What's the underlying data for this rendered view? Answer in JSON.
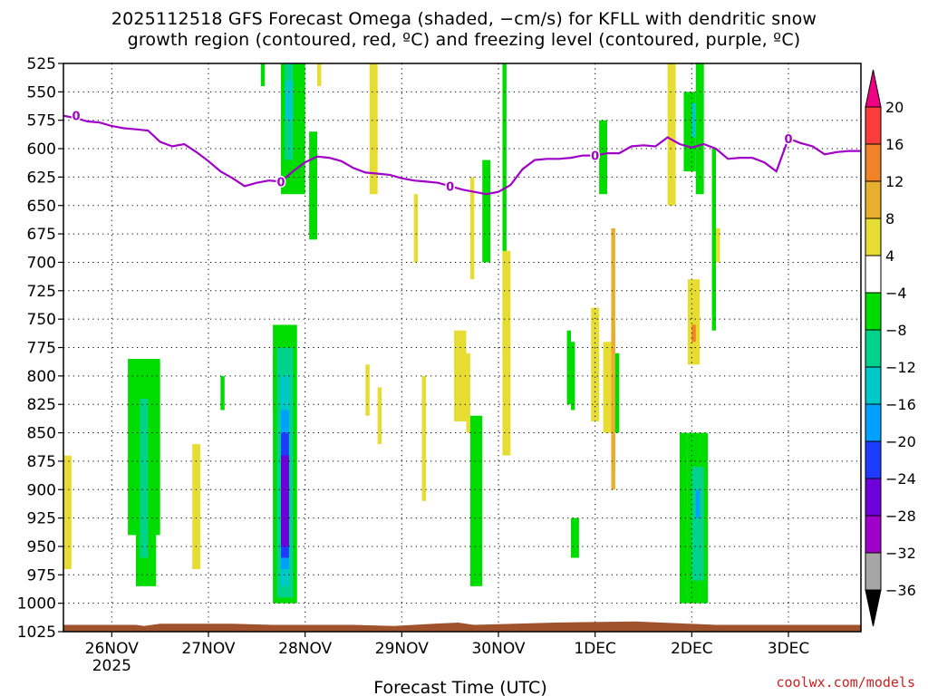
{
  "title_line1": "2025112518 GFS Forecast Omega (shaded, −cm/s) for KFLL with dendritic snow",
  "title_line2": "growth region (contoured, red, ºC) and freezing level (contoured, purple, ºC)",
  "credit": "coolwx.com/models",
  "chart_data": {
    "type": "heatmap",
    "title": "2025112518 GFS Forecast Omega (shaded, −cm/s) for KFLL with dendritic snow growth region (contoured, red, ºC) and freezing level (contoured, purple, ºC)",
    "xlabel": "Forecast Time (UTC)",
    "ylabel": "",
    "x_ticks": [
      "26NOV",
      "27NOV",
      "28NOV",
      "29NOV",
      "30NOV",
      "1DEC",
      "2DEC",
      "3DEC"
    ],
    "x_tick_sublabel": "2025",
    "x_range_hours": [
      -12,
      186
    ],
    "y_ticks": [
      525,
      550,
      575,
      600,
      625,
      650,
      675,
      700,
      725,
      750,
      775,
      800,
      825,
      850,
      875,
      900,
      925,
      950,
      975,
      1000,
      1025
    ],
    "y_range_hPa": [
      525,
      1025
    ],
    "grid": true,
    "colorbar": {
      "levels": [
        -36,
        -32,
        -28,
        -24,
        -20,
        -16,
        -12,
        -8,
        -4,
        4,
        8,
        12,
        16,
        20
      ],
      "colors": [
        "#000000",
        "#a6a6a6",
        "#a000c8",
        "#6e00dc",
        "#1e3cff",
        "#00a0ff",
        "#00c8c8",
        "#00d28c",
        "#00dc00",
        "#ffffff",
        "#e6dc32",
        "#e6af2d",
        "#f08228",
        "#fa3c3c",
        "#f00082"
      ]
    },
    "freezing_level": {
      "label": "0",
      "color": "#a000c8",
      "hours": [
        -12,
        -9,
        -6,
        -3,
        0,
        3,
        6,
        9,
        12,
        15,
        18,
        21,
        24,
        27,
        30,
        33,
        36,
        39,
        42,
        45,
        48,
        51,
        54,
        57,
        60,
        63,
        66,
        69,
        72,
        75,
        78,
        81,
        84,
        87,
        90,
        93,
        96,
        99,
        102,
        105,
        108,
        111,
        114,
        117,
        120,
        123,
        126,
        129,
        132,
        135,
        138,
        141,
        144,
        147,
        150,
        153,
        156,
        159,
        162,
        165,
        168,
        171,
        174,
        177,
        180,
        183,
        186
      ],
      "pressure_hPa": [
        571,
        573,
        576,
        577,
        580,
        582,
        583,
        584,
        594,
        598,
        596,
        603,
        611,
        620,
        626,
        633,
        630,
        628,
        629,
        620,
        612,
        607,
        608,
        611,
        617,
        621,
        622,
        623,
        626,
        628,
        629,
        630,
        633,
        636,
        638,
        640,
        638,
        632,
        618,
        610,
        609,
        609,
        608,
        606,
        606,
        604,
        604,
        598,
        597,
        598,
        590,
        596,
        599,
        596,
        600,
        609,
        608,
        608,
        612,
        620,
        591,
        595,
        598,
        605,
        603,
        602,
        602
      ]
    },
    "omega_cells": [
      {
        "h0": -12,
        "h1": -10,
        "p0": 870,
        "p1": 970,
        "v": 6
      },
      {
        "h0": 4,
        "h1": 12,
        "p0": 785,
        "p1": 940,
        "v": -6
      },
      {
        "h0": 6,
        "h1": 11,
        "p0": 800,
        "p1": 985,
        "v": -8
      },
      {
        "h0": 7,
        "h1": 9,
        "p0": 820,
        "p1": 960,
        "v": -12
      },
      {
        "h0": 20,
        "h1": 22,
        "p0": 860,
        "p1": 970,
        "v": 6
      },
      {
        "h0": 27,
        "h1": 28,
        "p0": 800,
        "p1": 830,
        "v": -6
      },
      {
        "h0": 37,
        "h1": 38,
        "p0": 525,
        "p1": 545,
        "v": -6
      },
      {
        "h0": 40,
        "h1": 41,
        "p0": 780,
        "p1": 830,
        "v": -6
      },
      {
        "h0": 42,
        "h1": 48,
        "p0": 525,
        "p1": 640,
        "v": -6
      },
      {
        "h0": 43,
        "h1": 45,
        "p0": 525,
        "p1": 610,
        "v": -10
      },
      {
        "h0": 43,
        "h1": 45,
        "p0": 540,
        "p1": 575,
        "v": -14
      },
      {
        "h0": 40,
        "h1": 46,
        "p0": 755,
        "p1": 1000,
        "v": -6
      },
      {
        "h0": 41,
        "h1": 45,
        "p0": 775,
        "p1": 995,
        "v": -10
      },
      {
        "h0": 42,
        "h1": 44,
        "p0": 800,
        "p1": 985,
        "v": -14
      },
      {
        "h0": 42,
        "h1": 44,
        "p0": 830,
        "p1": 970,
        "v": -18
      },
      {
        "h0": 42,
        "h1": 44,
        "p0": 850,
        "p1": 960,
        "v": -22
      },
      {
        "h0": 42,
        "h1": 44,
        "p0": 870,
        "p1": 950,
        "v": -26
      },
      {
        "h0": 49,
        "h1": 51,
        "p0": 585,
        "p1": 680,
        "v": -6
      },
      {
        "h0": 51,
        "h1": 52,
        "p0": 525,
        "p1": 545,
        "v": 6
      },
      {
        "h0": 64,
        "h1": 66,
        "p0": 525,
        "p1": 640,
        "v": 6
      },
      {
        "h0": 63,
        "h1": 64,
        "p0": 790,
        "p1": 835,
        "v": 6
      },
      {
        "h0": 66,
        "h1": 67,
        "p0": 810,
        "p1": 860,
        "v": 6
      },
      {
        "h0": 75,
        "h1": 76,
        "p0": 640,
        "p1": 700,
        "v": 6
      },
      {
        "h0": 77,
        "h1": 78,
        "p0": 800,
        "p1": 910,
        "v": 6
      },
      {
        "h0": 85,
        "h1": 88,
        "p0": 760,
        "p1": 840,
        "v": 6
      },
      {
        "h0": 88,
        "h1": 89,
        "p0": 780,
        "p1": 850,
        "v": 6
      },
      {
        "h0": 89,
        "h1": 92,
        "p0": 835,
        "p1": 985,
        "v": -6
      },
      {
        "h0": 92,
        "h1": 94,
        "p0": 610,
        "p1": 700,
        "v": -6
      },
      {
        "h0": 89,
        "h1": 90,
        "p0": 625,
        "p1": 715,
        "v": 6
      },
      {
        "h0": 97,
        "h1": 98,
        "p0": 525,
        "p1": 780,
        "v": -6
      },
      {
        "h0": 97,
        "h1": 99,
        "p0": 690,
        "p1": 870,
        "v": 6
      },
      {
        "h0": 113,
        "h1": 114,
        "p0": 760,
        "p1": 825,
        "v": -6
      },
      {
        "h0": 114,
        "h1": 115,
        "p0": 770,
        "p1": 830,
        "v": -8
      },
      {
        "h0": 114,
        "h1": 116,
        "p0": 925,
        "p1": 960,
        "v": -6
      },
      {
        "h0": 119,
        "h1": 121,
        "p0": 740,
        "p1": 840,
        "v": 6
      },
      {
        "h0": 121,
        "h1": 123,
        "p0": 575,
        "p1": 640,
        "v": -6
      },
      {
        "h0": 122,
        "h1": 124,
        "p0": 770,
        "p1": 850,
        "v": 6
      },
      {
        "h0": 124,
        "h1": 125,
        "p0": 670,
        "p1": 900,
        "v": 8
      },
      {
        "h0": 124,
        "h1": 125,
        "p0": 760,
        "p1": 880,
        "v": 10
      },
      {
        "h0": 125,
        "h1": 126,
        "p0": 780,
        "p1": 850,
        "v": -6
      },
      {
        "h0": 138,
        "h1": 140,
        "p0": 525,
        "p1": 650,
        "v": 6
      },
      {
        "h0": 141,
        "h1": 143,
        "p0": 850,
        "p1": 1000,
        "v": -6
      },
      {
        "h0": 142,
        "h1": 145,
        "p0": 550,
        "p1": 620,
        "v": -6
      },
      {
        "h0": 145,
        "h1": 147,
        "p0": 525,
        "p1": 640,
        "v": -6
      },
      {
        "h0": 144,
        "h1": 145,
        "p0": 560,
        "p1": 590,
        "v": -14
      },
      {
        "h0": 143,
        "h1": 146,
        "p0": 715,
        "p1": 790,
        "v": 6
      },
      {
        "h0": 144,
        "h1": 145,
        "p0": 755,
        "p1": 770,
        "v": 12
      },
      {
        "h0": 143,
        "h1": 148,
        "p0": 850,
        "p1": 1000,
        "v": -8
      },
      {
        "h0": 144,
        "h1": 147,
        "p0": 880,
        "p1": 980,
        "v": -12
      },
      {
        "h0": 145,
        "h1": 146,
        "p0": 900,
        "p1": 925,
        "v": -18
      },
      {
        "h0": 149,
        "h1": 150,
        "p0": 600,
        "p1": 760,
        "v": -6
      },
      {
        "h0": 150,
        "h1": 151,
        "p0": 670,
        "p1": 700,
        "v": 6
      }
    ]
  }
}
